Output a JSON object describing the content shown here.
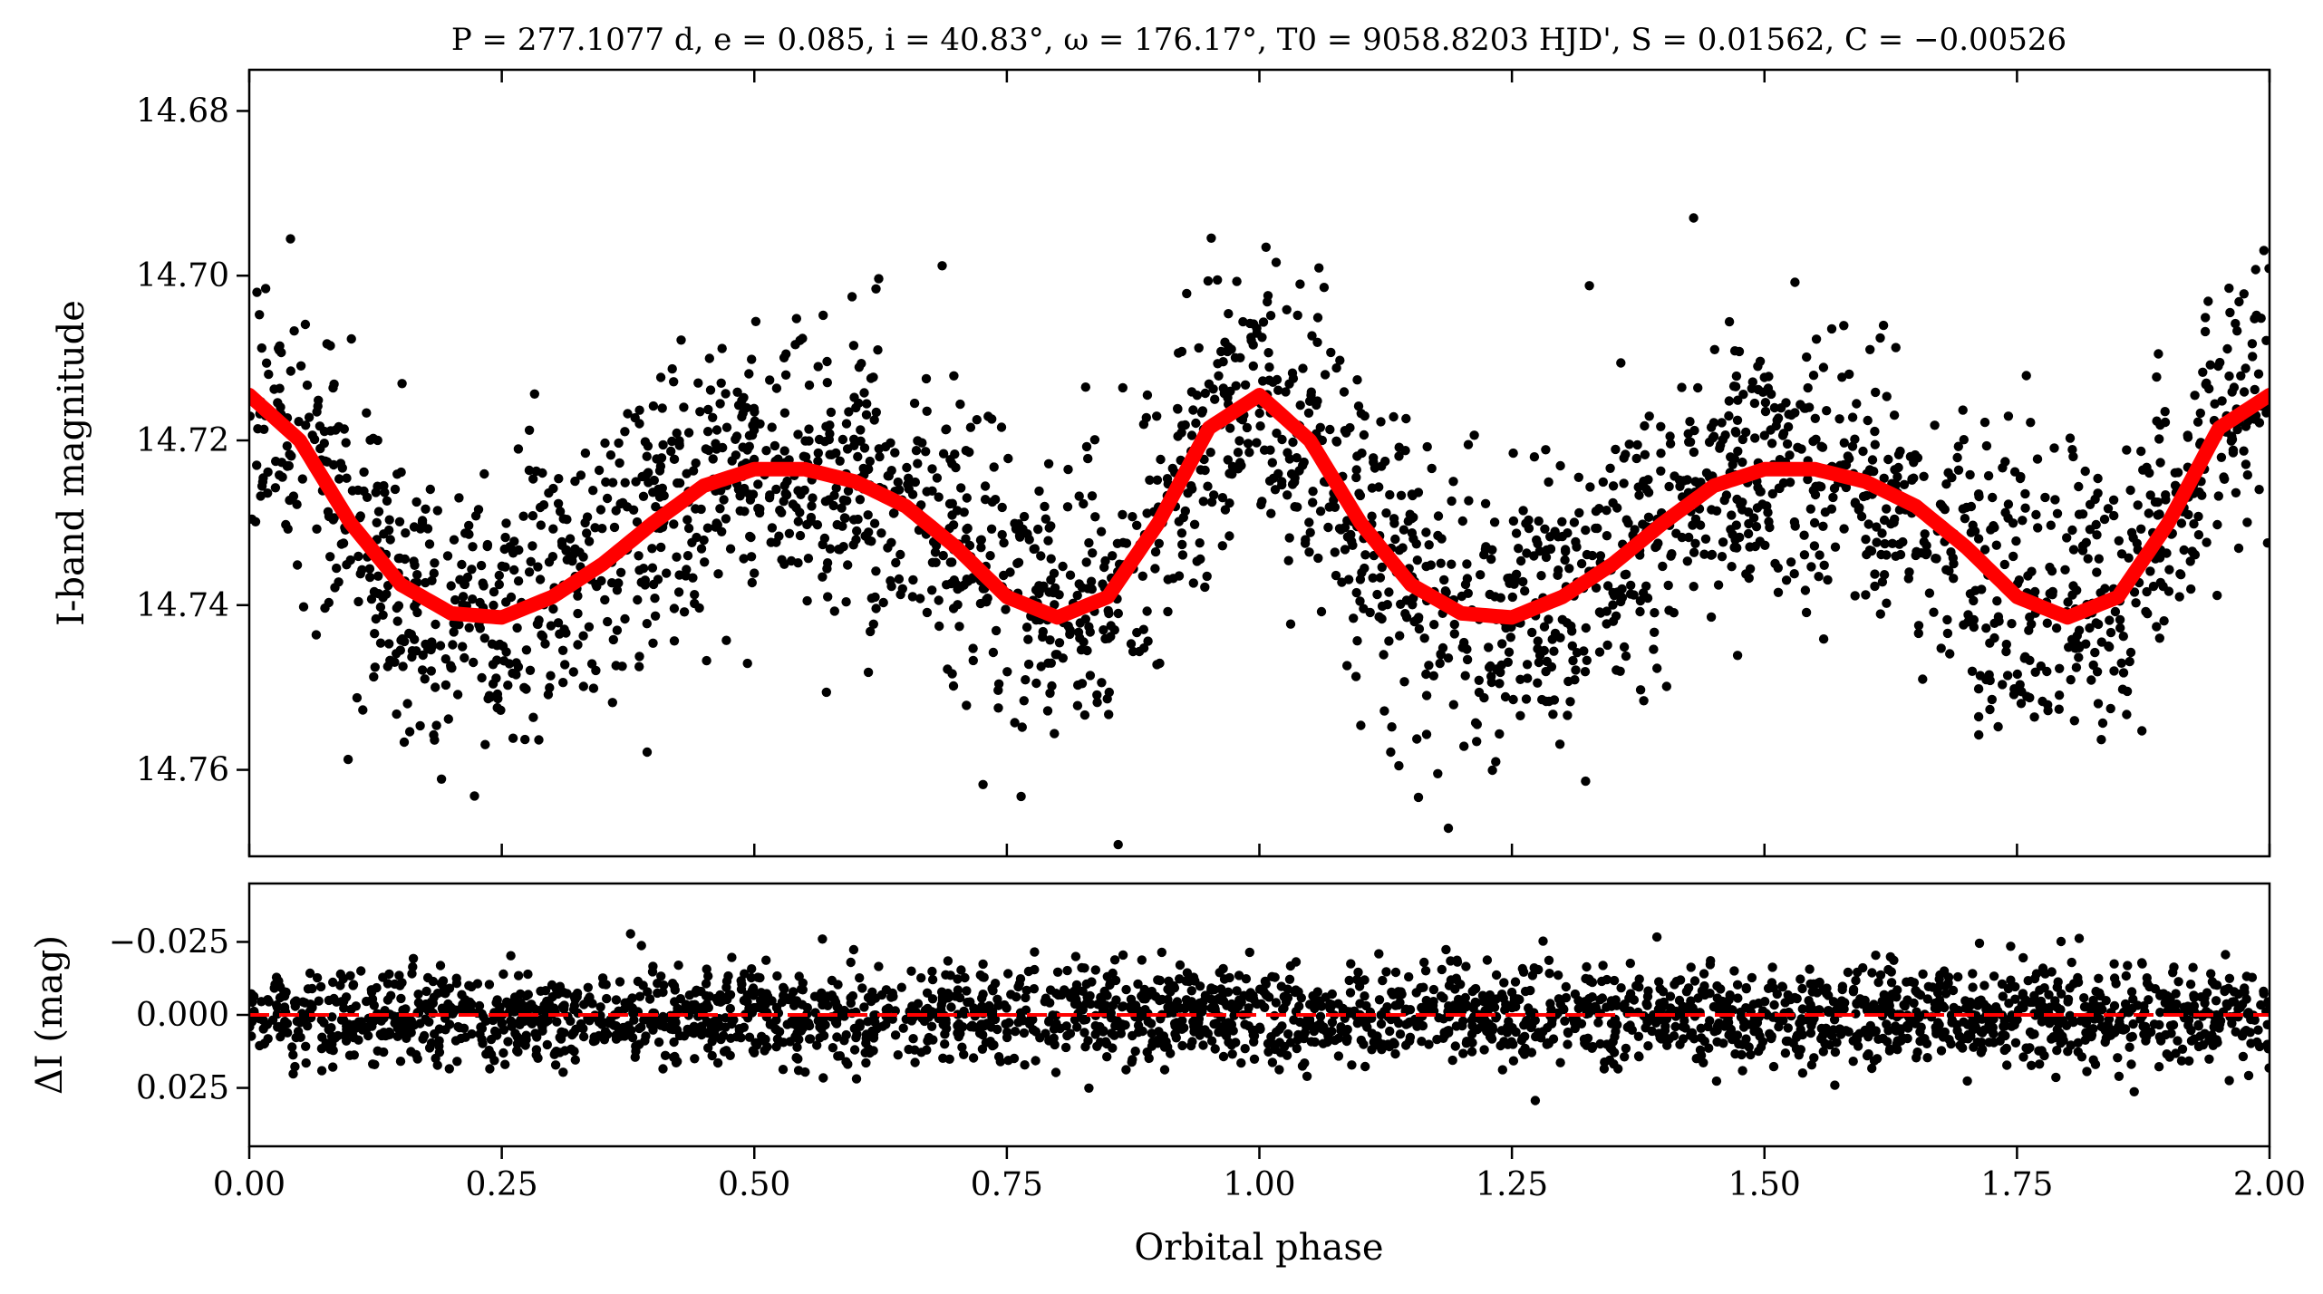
{
  "chart_data": [
    {
      "type": "scatter",
      "panel": "light-curve",
      "title": "P = 277.1077 d, e = 0.085, i = 40.83°, ω = 176.17°, T0 = 9058.8203 HJD', S = 0.01562, C = −0.00526",
      "ylabel": "I-band magnitude",
      "xlabel": "",
      "xlim": [
        0.0,
        2.0
      ],
      "ylim": [
        14.675,
        14.7705
      ],
      "y_inverted": true,
      "x_ticks": [
        0.0,
        0.25,
        0.5,
        0.75,
        1.0,
        1.25,
        1.5,
        1.75,
        2.0
      ],
      "y_ticks": [
        14.68,
        14.7,
        14.72,
        14.74,
        14.76
      ],
      "y_tick_labels": [
        "14.68",
        "14.70",
        "14.72",
        "14.74",
        "14.76"
      ],
      "grid": false,
      "series": [
        {
          "kind": "points",
          "color": "#000000",
          "model_points": {
            "x": [
              0.0,
              0.1,
              0.2,
              0.25,
              0.3,
              0.4,
              0.5,
              0.6,
              0.7,
              0.75,
              0.8,
              0.9,
              1.0,
              1.1,
              1.2,
              1.25,
              1.3,
              1.4,
              1.5,
              1.6,
              1.7,
              1.75,
              1.8,
              1.9,
              2.0
            ],
            "y": [
              14.716,
              14.729,
              14.74,
              14.741,
              14.738,
              14.73,
              14.724,
              14.726,
              14.735,
              14.74,
              14.741,
              14.731,
              14.716,
              14.729,
              14.74,
              14.741,
              14.738,
              14.73,
              14.724,
              14.726,
              14.735,
              14.74,
              14.741,
              14.731,
              14.716
            ]
          },
          "scatter_sigma_mag": 0.01
        },
        {
          "kind": "line",
          "color": "#ff0000",
          "x": [
            0.0,
            0.05,
            0.1,
            0.15,
            0.2,
            0.25,
            0.3,
            0.35,
            0.4,
            0.45,
            0.5,
            0.55,
            0.6,
            0.65,
            0.7,
            0.75,
            0.8,
            0.85,
            0.9,
            0.95,
            1.0,
            1.05,
            1.1,
            1.15,
            1.2,
            1.25,
            1.3,
            1.35,
            1.4,
            1.45,
            1.5,
            1.55,
            1.6,
            1.65,
            1.7,
            1.75,
            1.8,
            1.85,
            1.9,
            1.95,
            2.0
          ],
          "y": [
            14.7145,
            14.72,
            14.73,
            14.7375,
            14.741,
            14.7415,
            14.739,
            14.735,
            14.73,
            14.7255,
            14.7235,
            14.7235,
            14.725,
            14.728,
            14.733,
            14.739,
            14.7415,
            14.739,
            14.73,
            14.7185,
            14.7145,
            14.72,
            14.73,
            14.7375,
            14.741,
            14.7415,
            14.739,
            14.735,
            14.73,
            14.7255,
            14.7235,
            14.7235,
            14.725,
            14.728,
            14.733,
            14.739,
            14.7415,
            14.739,
            14.73,
            14.7185,
            14.7145
          ]
        }
      ]
    },
    {
      "type": "scatter",
      "panel": "residuals",
      "xlabel": "Orbital phase",
      "ylabel": "ΔI (mag)",
      "xlim": [
        0.0,
        2.0
      ],
      "ylim": [
        0.045,
        -0.045
      ],
      "y_inverted": true,
      "x_ticks": [
        0.0,
        0.25,
        0.5,
        0.75,
        1.0,
        1.25,
        1.5,
        1.75,
        2.0
      ],
      "x_tick_labels": [
        "0.00",
        "0.25",
        "0.50",
        "0.75",
        "1.00",
        "1.25",
        "1.50",
        "1.75",
        "2.00"
      ],
      "y_ticks": [
        -0.025,
        0.0,
        0.025
      ],
      "y_tick_labels": [
        "−0.025",
        "0.000",
        "0.025"
      ],
      "grid": false,
      "series": [
        {
          "kind": "points",
          "color": "#000000",
          "scatter_sigma_mag": 0.009
        },
        {
          "kind": "hline",
          "y": 0.0,
          "color": "#ff0000",
          "style": "dashed"
        }
      ]
    }
  ]
}
